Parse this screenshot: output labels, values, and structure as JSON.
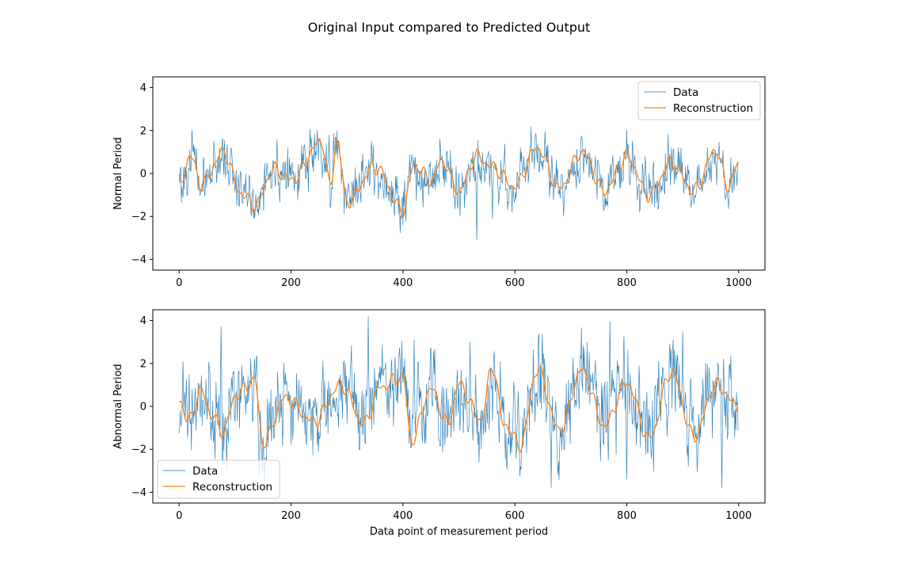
{
  "figure": {
    "title": "Original Input compared to Predicted Output"
  },
  "chart_data": [
    {
      "type": "line",
      "title": "",
      "xlabel": "",
      "ylabel": "Normal Period",
      "xlim": [
        -47,
        1047
      ],
      "ylim": [
        -4.5,
        4.5
      ],
      "xticks": [
        0,
        200,
        400,
        600,
        800,
        1000
      ],
      "yticks": [
        -4,
        -2,
        0,
        2,
        4
      ],
      "grid": false,
      "legend_position": "upper-right",
      "series": [
        {
          "name": "Data",
          "color": "#1f77b4",
          "line_width": "thin",
          "x_range": [
            0,
            999
          ],
          "approx_values": "noisy signal around 0, mostly within ±1.5, peak ≈2.0 near x≈282 and x≈800, trough ≈-3.1 near x≈532"
        },
        {
          "name": "Reconstruction",
          "color": "#ff7f0e",
          "line_width": "normal",
          "x_range": [
            0,
            999
          ],
          "keypoints_x": [
            0,
            20,
            40,
            80,
            110,
            135,
            170,
            200,
            255,
            270,
            282,
            300,
            350,
            400,
            420,
            450,
            470,
            500,
            532,
            560,
            600,
            640,
            680,
            720,
            760,
            800,
            840,
            880,
            920,
            960,
            980,
            999
          ],
          "keypoints_y": [
            -0.6,
            0.8,
            -0.5,
            1.0,
            -0.9,
            -1.5,
            0.2,
            -0.3,
            1.5,
            -0.6,
            1.5,
            -1.3,
            0.3,
            -1.7,
            0.4,
            -0.3,
            0.6,
            -0.8,
            0.8,
            0.3,
            -0.6,
            1.2,
            -0.7,
            1.0,
            -0.8,
            0.8,
            -1.0,
            0.5,
            -0.8,
            1.1,
            -0.6,
            0.4
          ]
        }
      ]
    },
    {
      "type": "line",
      "title": "",
      "xlabel": "Data point of measurement period",
      "ylabel": "Abnormal Period",
      "xlim": [
        -47,
        1047
      ],
      "ylim": [
        -4.5,
        4.5
      ],
      "xticks": [
        0,
        200,
        400,
        600,
        800,
        1000
      ],
      "yticks": [
        -4,
        -2,
        0,
        2,
        4
      ],
      "grid": false,
      "legend_position": "lower-left",
      "series": [
        {
          "name": "Data",
          "color": "#1f77b4",
          "line_width": "thin",
          "x_range": [
            0,
            999
          ],
          "approx_values": "noisy signal around 0, mostly within ±2.5, peaks ≈3.7 at x≈75, ≈4.2 at x≈338, ≈3.9 at x≈770; troughs ≈-3.8 near x≈665 and x≈970"
        },
        {
          "name": "Reconstruction",
          "color": "#ff7f0e",
          "line_width": "normal",
          "x_range": [
            0,
            999
          ],
          "keypoints_x": [
            0,
            15,
            40,
            60,
            80,
            100,
            135,
            150,
            190,
            240,
            290,
            330,
            360,
            400,
            415,
            450,
            480,
            500,
            540,
            560,
            580,
            610,
            640,
            680,
            720,
            760,
            800,
            840,
            880,
            920,
            960,
            999
          ],
          "keypoints_y": [
            0.4,
            -0.7,
            0.7,
            -0.5,
            -1.2,
            0.5,
            1.2,
            -1.7,
            0.4,
            -0.7,
            1.0,
            -0.8,
            0.9,
            1.4,
            -1.6,
            0.8,
            -0.8,
            1.0,
            -0.6,
            1.9,
            -0.8,
            -1.8,
            1.7,
            -1.1,
            1.7,
            -0.9,
            1.1,
            -1.5,
            1.6,
            -1.4,
            1.0,
            0.0
          ]
        }
      ]
    }
  ]
}
